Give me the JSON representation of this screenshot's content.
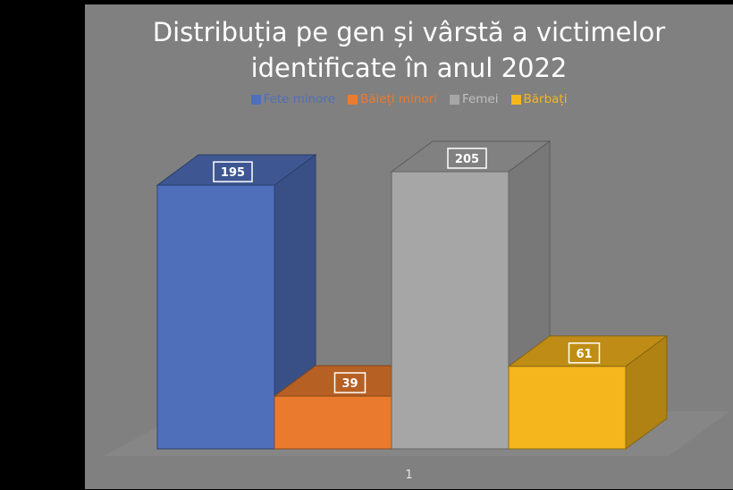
{
  "chart_data": {
    "type": "bar",
    "title": "Distribuția pe gen și vârstă a victimelor identificate în anul 2022",
    "title_lines": [
      "Distribuția pe gen și vârstă a victimelor",
      "identificate în anul 2022"
    ],
    "categories": [
      "1"
    ],
    "series": [
      {
        "name": "Fete minore",
        "values": [
          195
        ],
        "color": "#4f6fbb"
      },
      {
        "name": "Băieți minori",
        "values": [
          39
        ],
        "color": "#ea7b2e"
      },
      {
        "name": "Femei",
        "values": [
          205
        ],
        "color": "#a6a6a6"
      },
      {
        "name": "Bărbați",
        "values": [
          61
        ],
        "color": "#f5b51c"
      }
    ],
    "legend_position": "top",
    "grid": false,
    "three_d": true,
    "ylim": [
      0,
      205
    ]
  }
}
